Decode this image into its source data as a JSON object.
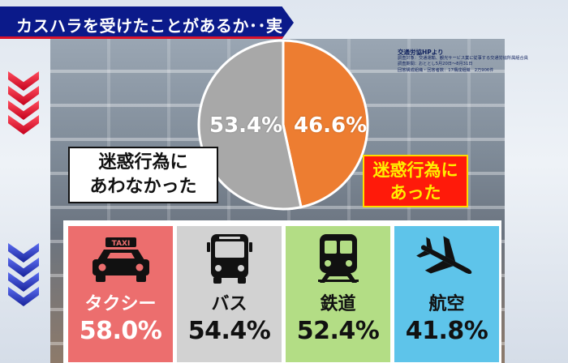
{
  "header": {
    "title": "カスハラを受けたことがあるか･･実態調査"
  },
  "source": {
    "title": "交通労協HPより",
    "lines": [
      "調査対象：交通運輸、観光サービス業に従事する交通労協所属組合員",
      "調査期間：おととし5月20日～8月31日",
      "回答構成組織・回答者数：17構成組織　2万906件"
    ]
  },
  "labels": {
    "no_line1": "迷惑行為に",
    "no_line2": "あわなかった",
    "yes_line1": "迷惑行為に",
    "yes_line2": "あった"
  },
  "colors": {
    "header_bg": "#0b1a8a",
    "accent_red": "#d9122a",
    "pie_yes": "#ed7d31",
    "pie_no": "#a8a8a8",
    "taxi": "#ec6e6e",
    "bus": "#d2d2d2",
    "rail": "#b3dd85",
    "air": "#5ec4ea"
  },
  "chart_data": [
    {
      "type": "pie",
      "slices": [
        {
          "label": "迷惑行為にあった",
          "value": 46.6,
          "display": "46.6%",
          "color": "#ed7d31"
        },
        {
          "label": "迷惑行為にあわなかった",
          "value": 53.4,
          "display": "53.4%",
          "color": "#a8a8a8"
        }
      ]
    },
    {
      "type": "table",
      "categories": [
        "タクシー",
        "バス",
        "鉄道",
        "航空"
      ],
      "values": [
        58.0,
        54.4,
        52.4,
        41.8
      ],
      "display": [
        "58.0%",
        "54.4%",
        "52.4%",
        "41.8%"
      ],
      "icons": [
        "taxi-icon",
        "bus-icon",
        "train-icon",
        "airplane-icon"
      ],
      "taxi_sign": "TAXI"
    }
  ]
}
